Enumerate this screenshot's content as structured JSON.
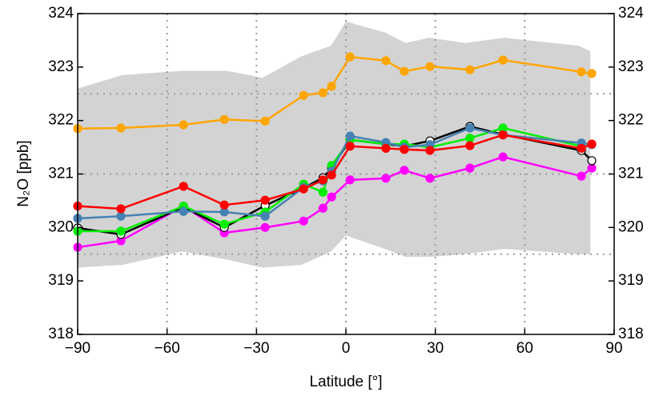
{
  "chart_data": {
    "type": "line",
    "xlabel": "Latitude [°]",
    "ylabel": "N₂O  [ppb]",
    "x": [
      -90,
      -75.5,
      -54.5,
      -40.8,
      -27.1,
      -14.2,
      -7.7,
      -4.8,
      1.4,
      13.4,
      19.6,
      28.2,
      41.6,
      52.7,
      79,
      82.5
    ],
    "xlim": [
      -90,
      90
    ],
    "xticks": [
      {
        "value": -90,
        "label": "−90"
      },
      {
        "value": -60,
        "label": "−60"
      },
      {
        "value": -30,
        "label": "−30"
      },
      0,
      30,
      60,
      90
    ],
    "ylim": [
      318,
      324
    ],
    "yticks": [
      318,
      319,
      320,
      321,
      322,
      323,
      324
    ],
    "vgrid": [
      -60,
      -30,
      0,
      30,
      60
    ],
    "hgrid": [
      319.5,
      321,
      322.5
    ],
    "band": {
      "color": "#d3d3d3",
      "x": [
        -90,
        -75,
        -55,
        -40,
        -28,
        -15,
        -5,
        0,
        13,
        20,
        28,
        40,
        53,
        78,
        82
      ],
      "upper": [
        322.6,
        322.85,
        322.93,
        322.93,
        322.8,
        323.2,
        323.4,
        323.85,
        323.65,
        323.45,
        323.55,
        323.45,
        323.55,
        323.4,
        323.3
      ],
      "lower": [
        319.25,
        319.3,
        319.55,
        319.4,
        319.25,
        319.3,
        319.55,
        319.85,
        319.6,
        319.45,
        319.45,
        319.5,
        319.6,
        319.5,
        319.5
      ]
    },
    "series": [
      {
        "color": "#ffa500",
        "values": [
          321.85,
          321.86,
          321.92,
          322.02,
          321.99,
          322.47,
          322.52,
          322.64,
          323.19,
          323.12,
          322.92,
          323.01,
          322.95,
          323.13,
          322.91,
          322.88
        ]
      },
      {
        "color": "#ff00ff",
        "values": [
          319.63,
          319.75,
          320.4,
          319.9,
          320.0,
          320.12,
          320.36,
          320.57,
          320.89,
          320.92,
          321.07,
          320.92,
          321.11,
          321.32,
          320.96,
          321.11
        ]
      },
      {
        "color": "#000000",
        "marker_fill": "#ffffff",
        "values": [
          319.99,
          319.87,
          320.38,
          320.0,
          320.41,
          320.74,
          320.93,
          321.11,
          321.64,
          321.56,
          321.52,
          321.62,
          321.89,
          321.74,
          321.44,
          321.25
        ]
      },
      {
        "color": "#00ee00",
        "values": [
          319.93,
          319.93,
          320.4,
          320.06,
          320.29,
          320.81,
          320.66,
          321.16,
          321.64,
          321.56,
          321.56,
          321.5,
          321.67,
          321.86,
          321.52,
          null
        ]
      },
      {
        "color": "#4682b4",
        "values": [
          320.17,
          320.21,
          320.3,
          320.29,
          320.21,
          320.75,
          320.87,
          321.05,
          321.71,
          321.59,
          321.5,
          321.55,
          321.86,
          321.73,
          321.58,
          321.55
        ]
      },
      {
        "color": "#ff0000",
        "values": [
          320.4,
          320.35,
          320.77,
          320.42,
          320.51,
          320.72,
          320.89,
          320.98,
          321.52,
          321.48,
          321.46,
          321.44,
          321.53,
          321.73,
          321.48,
          321.56
        ]
      }
    ]
  }
}
